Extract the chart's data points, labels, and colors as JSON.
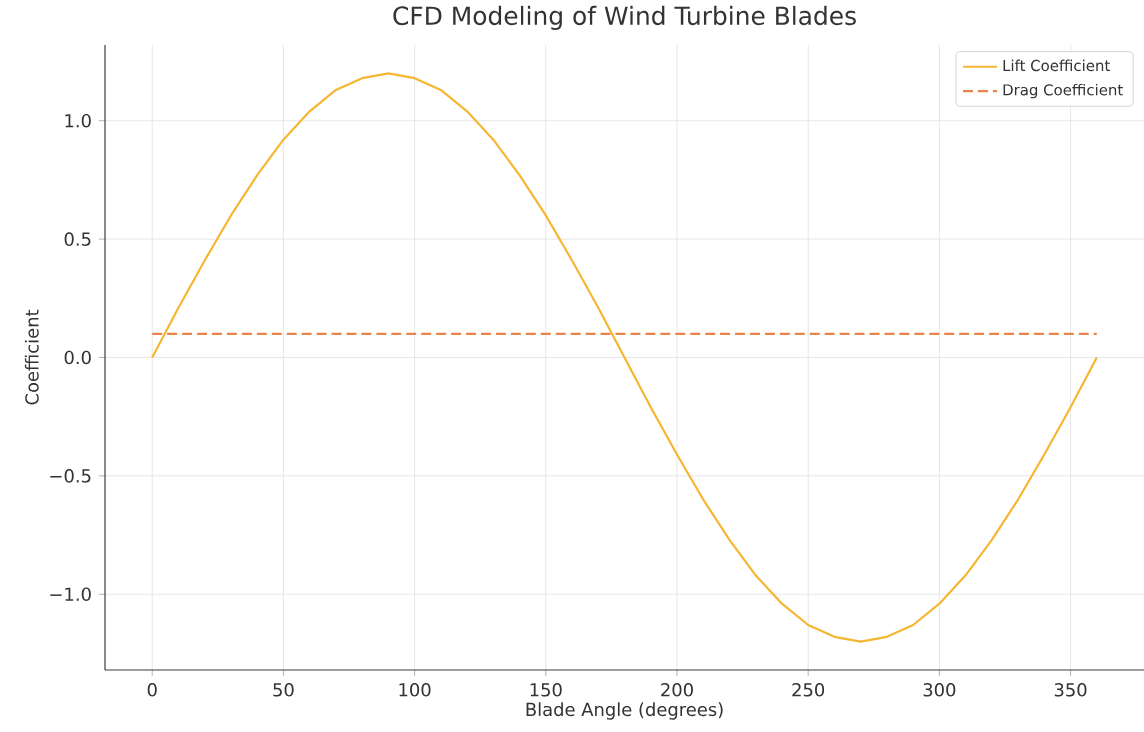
{
  "chart_data": {
    "type": "line",
    "title": "CFD Modeling of Wind Turbine Blades",
    "xlabel": "Blade Angle (degrees)",
    "ylabel": "Coefficient",
    "x": [
      0,
      10,
      20,
      30,
      40,
      50,
      60,
      70,
      80,
      90,
      100,
      110,
      120,
      130,
      140,
      150,
      160,
      170,
      180,
      190,
      200,
      210,
      220,
      230,
      240,
      250,
      260,
      270,
      280,
      290,
      300,
      310,
      320,
      330,
      340,
      350,
      360
    ],
    "series": [
      {
        "name": "Lift Coefficient",
        "color": "#f5b731",
        "line_style": "solid",
        "values": [
          0,
          0.21,
          0.41,
          0.6,
          0.77,
          0.92,
          1.04,
          1.13,
          1.18,
          1.2,
          1.18,
          1.13,
          1.04,
          0.92,
          0.77,
          0.6,
          0.41,
          0.21,
          0,
          -0.21,
          -0.41,
          -0.6,
          -0.77,
          -0.92,
          -1.04,
          -1.13,
          -1.18,
          -1.2,
          -1.18,
          -1.13,
          -1.04,
          -0.92,
          -0.77,
          -0.6,
          -0.41,
          -0.21,
          0
        ]
      },
      {
        "name": "Drag Coefficient",
        "color": "#e8834a",
        "line_style": "dashed",
        "values": [
          0.1,
          0.1,
          0.1,
          0.1,
          0.1,
          0.1,
          0.1,
          0.1,
          0.1,
          0.1,
          0.1,
          0.1,
          0.1,
          0.1,
          0.1,
          0.1,
          0.1,
          0.1,
          0.1,
          0.1,
          0.1,
          0.1,
          0.1,
          0.1,
          0.1,
          0.1,
          0.1,
          0.1,
          0.1,
          0.1,
          0.1,
          0.1,
          0.1,
          0.1,
          0.1,
          0.1,
          0.1
        ]
      }
    ],
    "xlim": [
      -18,
      378
    ],
    "ylim": [
      -1.32,
      1.32
    ],
    "xticks": [
      0,
      50,
      100,
      150,
      200,
      250,
      300,
      350
    ],
    "yticks": [
      {
        "value": -1.0,
        "label": "−1.0"
      },
      {
        "value": -0.5,
        "label": "−0.5"
      },
      {
        "value": 0.0,
        "label": "0.0"
      },
      {
        "value": 0.5,
        "label": "0.5"
      },
      {
        "value": 1.0,
        "label": "1.0"
      }
    ],
    "grid": true,
    "legend": "top right"
  }
}
